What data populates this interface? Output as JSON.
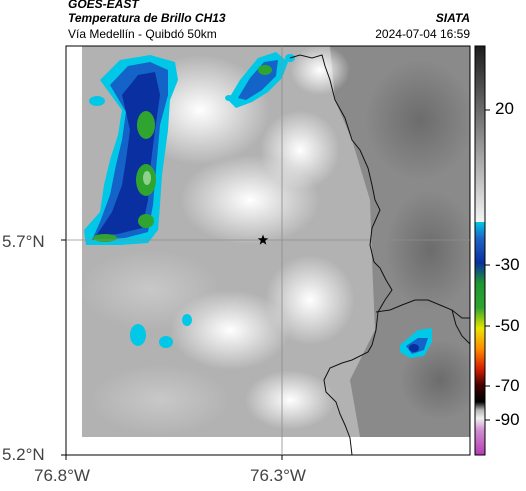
{
  "header": {
    "satellite": "GOES-EAST",
    "product": "Temperatura de Brillo CH13",
    "route": "Vía Medellín - Quibdó 50km",
    "organization": "SIATA",
    "timestamp": "2024-07-04 16:59"
  },
  "map": {
    "lat_labels": [
      "5.7°N",
      "5.2°N"
    ],
    "lon_labels": [
      "76.8°W",
      "76.3°W"
    ],
    "marker_icon": "star-icon"
  },
  "colorbar": {
    "tick_labels": [
      "20",
      "-30",
      "-50",
      "-70",
      "-90"
    ],
    "colors": {
      "warm_dark": "#1c1c1c",
      "warm_light": "#f4f4f4",
      "cyan": "#00c8e6",
      "blue": "#0a2fa0",
      "green": "#2fa52f",
      "yellow": "#e6e600",
      "red": "#d21e00",
      "black": "#000000",
      "magenta": "#b43cb4"
    }
  }
}
